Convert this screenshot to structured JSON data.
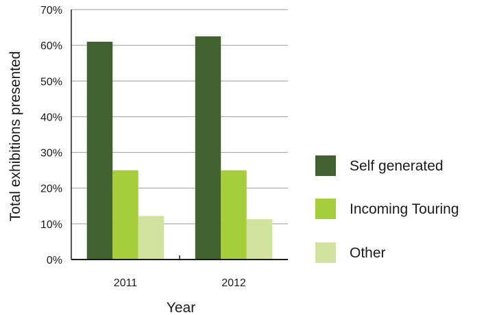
{
  "chart_data": {
    "type": "bar",
    "categories": [
      "2011",
      "2012"
    ],
    "series": [
      {
        "name": "Self generated",
        "values": [
          61,
          62.5
        ],
        "color": "#41622f"
      },
      {
        "name": "Incoming Touring",
        "values": [
          25,
          25
        ],
        "color": "#a6cd3a"
      },
      {
        "name": "Other",
        "values": [
          12.2,
          11.3
        ],
        "color": "#d1e39f"
      }
    ],
    "xlabel": "Year",
    "ylabel": "Total exhibitions presented",
    "ylim": [
      0,
      70
    ],
    "yticks": [
      "0%",
      "10%",
      "20%",
      "30%",
      "40%",
      "50%",
      "60%",
      "70%"
    ],
    "grid": true,
    "legend": "right"
  }
}
